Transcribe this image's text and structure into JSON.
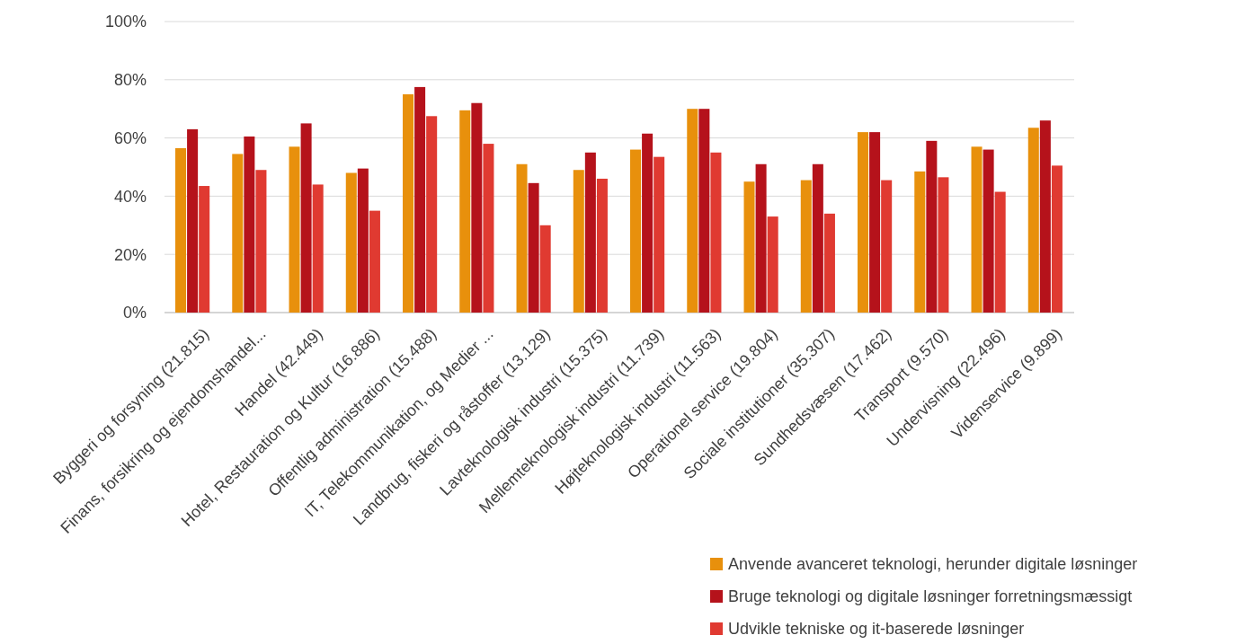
{
  "chart_data": {
    "type": "bar",
    "categories": [
      "Byggeri og forsyning (21.815)",
      "Finans, forsikring og ejendomshandel...",
      "Handel (42.449)",
      "Hotel, Restauration og Kultur (16.886)",
      "Offentlig administration (15.488)",
      "IT, Telekommunikation, og Medier ...",
      "Landbrug, fiskeri og råstoffer (13.129)",
      "Lavteknologisk industri (15.375)",
      "Mellemteknologisk industri (11.739)",
      "Højteknologisk industri (11.563)",
      "Operationel service (19.804)",
      "Sociale institutioner (35.307)",
      "Sundhedsvæsen (17.462)",
      "Transport (9.570)",
      "Undervisning (22.496)",
      "Videnservice (9.899)"
    ],
    "series": [
      {
        "name": "Anvende avanceret teknologi, herunder digitale løsninger",
        "color": "#e8900c",
        "values": [
          56.5,
          54.5,
          57,
          48,
          75,
          69.5,
          51,
          49,
          56,
          70,
          45,
          45.5,
          62,
          48.5,
          57,
          63.5
        ]
      },
      {
        "name": "Bruge teknologi og digitale løsninger forretningsmæssigt",
        "color": "#b5121b",
        "values": [
          63,
          60.5,
          65,
          49.5,
          77.5,
          72,
          44.5,
          55,
          61.5,
          70,
          51,
          51,
          62,
          59,
          56,
          66
        ]
      },
      {
        "name": "Udvikle tekniske og it-baserede løsninger",
        "color": "#e03a31",
        "values": [
          43.5,
          49,
          44,
          35,
          67.5,
          58,
          30,
          46,
          53.5,
          55,
          33,
          34,
          45.5,
          46.5,
          41.5,
          50.5
        ]
      }
    ],
    "ylim": [
      0,
      100
    ],
    "yticks": [
      {
        "value": 0,
        "label": "0%"
      },
      {
        "value": 20,
        "label": "20%"
      },
      {
        "value": 40,
        "label": "40%"
      },
      {
        "value": 60,
        "label": "60%"
      },
      {
        "value": 80,
        "label": "80%"
      },
      {
        "value": 100,
        "label": "100%"
      }
    ],
    "grid": "y",
    "legend": "bottom right"
  }
}
